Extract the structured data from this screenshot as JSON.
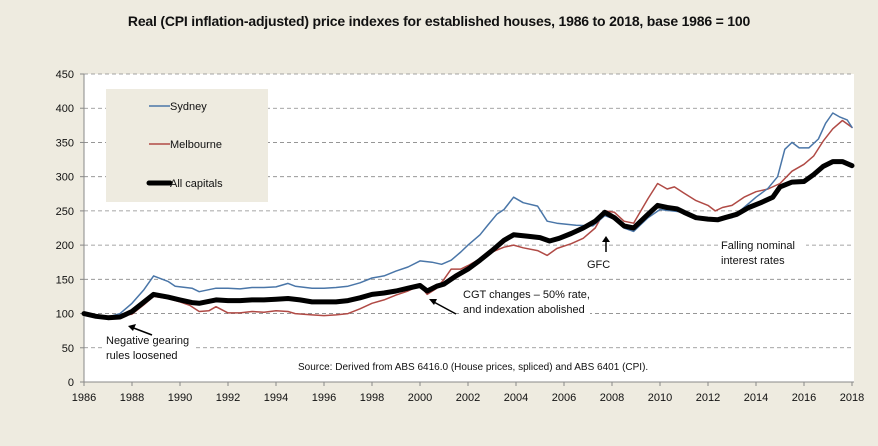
{
  "chart_data": {
    "type": "line",
    "title": "Real (CPI inflation-adjusted) price indexes for established houses, 1986 to 2018, base 1986 = 100",
    "xlabel": "",
    "ylabel": "",
    "xlim": [
      1986,
      2018
    ],
    "ylim": [
      0,
      450
    ],
    "x_ticks": [
      "1986",
      "1988",
      "1990",
      "1992",
      "1994",
      "1996",
      "1998",
      "2000",
      "2002",
      "2004",
      "2006",
      "2008",
      "2010",
      "2012",
      "2014",
      "2016",
      "2018"
    ],
    "y_ticks": [
      "0",
      "50",
      "100",
      "150",
      "200",
      "250",
      "300",
      "350",
      "400",
      "450"
    ],
    "grid": "horizontal dashed",
    "legend_position": "top-left",
    "series": [
      {
        "name": "Sydney",
        "color": "#4a76a8",
        "points": [
          [
            1986,
            100
          ],
          [
            1986.5,
            97
          ],
          [
            1987,
            95
          ],
          [
            1987.5,
            100
          ],
          [
            1988,
            115
          ],
          [
            1988.5,
            135
          ],
          [
            1988.9,
            155
          ],
          [
            1989.5,
            147
          ],
          [
            1989.8,
            140
          ],
          [
            1990.5,
            137
          ],
          [
            1990.8,
            132
          ],
          [
            1991.5,
            137
          ],
          [
            1992,
            137
          ],
          [
            1992.5,
            136
          ],
          [
            1993,
            138
          ],
          [
            1993.5,
            138
          ],
          [
            1994,
            139
          ],
          [
            1994.5,
            144
          ],
          [
            1994.8,
            140
          ],
          [
            1995.5,
            137
          ],
          [
            1996,
            137
          ],
          [
            1996.5,
            138
          ],
          [
            1997,
            140
          ],
          [
            1997.5,
            145
          ],
          [
            1998,
            152
          ],
          [
            1998.5,
            155
          ],
          [
            1999,
            162
          ],
          [
            1999.5,
            168
          ],
          [
            2000,
            177
          ],
          [
            2000.5,
            175
          ],
          [
            2000.9,
            172
          ],
          [
            2001.3,
            178
          ],
          [
            2001.7,
            190
          ],
          [
            2002,
            200
          ],
          [
            2002.5,
            215
          ],
          [
            2002.8,
            228
          ],
          [
            2003.2,
            245
          ],
          [
            2003.5,
            252
          ],
          [
            2003.9,
            270
          ],
          [
            2004.3,
            262
          ],
          [
            2004.9,
            257
          ],
          [
            2005.3,
            235
          ],
          [
            2005.7,
            232
          ],
          [
            2006.5,
            229
          ],
          [
            2007.2,
            228
          ],
          [
            2007.7,
            243
          ],
          [
            2008.1,
            238
          ],
          [
            2008.5,
            225
          ],
          [
            2008.9,
            220
          ],
          [
            2009.5,
            240
          ],
          [
            2010,
            252
          ],
          [
            2010.5,
            250
          ],
          [
            2011,
            248
          ],
          [
            2011.5,
            240
          ],
          [
            2012,
            238
          ],
          [
            2012.5,
            238
          ],
          [
            2013,
            240
          ],
          [
            2013.5,
            255
          ],
          [
            2014,
            270
          ],
          [
            2014.5,
            283
          ],
          [
            2014.9,
            300
          ],
          [
            2015.2,
            340
          ],
          [
            2015.5,
            350
          ],
          [
            2015.8,
            342
          ],
          [
            2016.2,
            342
          ],
          [
            2016.6,
            355
          ],
          [
            2016.9,
            378
          ],
          [
            2017.2,
            393
          ],
          [
            2017.5,
            387
          ],
          [
            2017.8,
            383
          ],
          [
            2018,
            372
          ]
        ]
      },
      {
        "name": "Melbourne",
        "color": "#b04a45",
        "points": [
          [
            1986,
            100
          ],
          [
            1986.5,
            97
          ],
          [
            1987,
            95
          ],
          [
            1987.5,
            97
          ],
          [
            1988,
            99
          ],
          [
            1988.5,
            113
          ],
          [
            1988.9,
            125
          ],
          [
            1989.5,
            122
          ],
          [
            1990,
            117
          ],
          [
            1990.4,
            112
          ],
          [
            1990.8,
            103
          ],
          [
            1991.2,
            104
          ],
          [
            1991.5,
            110
          ],
          [
            1992,
            101
          ],
          [
            1992.5,
            101
          ],
          [
            1993,
            103
          ],
          [
            1993.5,
            102
          ],
          [
            1994,
            104
          ],
          [
            1994.5,
            103
          ],
          [
            1994.8,
            100
          ],
          [
            1995.5,
            98
          ],
          [
            1996,
            97
          ],
          [
            1996.5,
            98
          ],
          [
            1997,
            100
          ],
          [
            1997.5,
            107
          ],
          [
            1998,
            115
          ],
          [
            1998.5,
            120
          ],
          [
            1999,
            127
          ],
          [
            1999.5,
            133
          ],
          [
            2000,
            141
          ],
          [
            2000.3,
            128
          ],
          [
            2000.7,
            137
          ],
          [
            2001,
            150
          ],
          [
            2001.3,
            165
          ],
          [
            2001.7,
            165
          ],
          [
            2002,
            170
          ],
          [
            2002.5,
            180
          ],
          [
            2003,
            190
          ],
          [
            2003.5,
            197
          ],
          [
            2003.9,
            200
          ],
          [
            2004.3,
            196
          ],
          [
            2004.9,
            192
          ],
          [
            2005.3,
            185
          ],
          [
            2005.7,
            195
          ],
          [
            2006.3,
            202
          ],
          [
            2006.8,
            210
          ],
          [
            2007.3,
            225
          ],
          [
            2007.7,
            250
          ],
          [
            2008.1,
            248
          ],
          [
            2008.5,
            235
          ],
          [
            2008.9,
            232
          ],
          [
            2009.5,
            268
          ],
          [
            2009.9,
            290
          ],
          [
            2010.3,
            282
          ],
          [
            2010.6,
            285
          ],
          [
            2011,
            276
          ],
          [
            2011.5,
            265
          ],
          [
            2012,
            258
          ],
          [
            2012.3,
            250
          ],
          [
            2012.6,
            255
          ],
          [
            2013,
            258
          ],
          [
            2013.5,
            270
          ],
          [
            2014,
            278
          ],
          [
            2014.5,
            282
          ],
          [
            2015,
            290
          ],
          [
            2015.5,
            308
          ],
          [
            2016,
            318
          ],
          [
            2016.4,
            330
          ],
          [
            2016.8,
            352
          ],
          [
            2017.2,
            370
          ],
          [
            2017.6,
            382
          ],
          [
            2018,
            372
          ]
        ]
      },
      {
        "name": "All capitals",
        "color": "#000000",
        "points": [
          [
            1986,
            100
          ],
          [
            1986.5,
            96
          ],
          [
            1987,
            94
          ],
          [
            1987.5,
            95
          ],
          [
            1988,
            103
          ],
          [
            1988.5,
            117
          ],
          [
            1988.9,
            128
          ],
          [
            1989.5,
            124
          ],
          [
            1990,
            120
          ],
          [
            1990.5,
            116
          ],
          [
            1990.8,
            115
          ],
          [
            1991.5,
            120
          ],
          [
            1992,
            119
          ],
          [
            1992.5,
            119
          ],
          [
            1993,
            120
          ],
          [
            1993.5,
            120
          ],
          [
            1994,
            121
          ],
          [
            1994.5,
            122
          ],
          [
            1995,
            120
          ],
          [
            1995.5,
            117
          ],
          [
            1996,
            117
          ],
          [
            1996.5,
            117
          ],
          [
            1997,
            119
          ],
          [
            1997.5,
            123
          ],
          [
            1998,
            128
          ],
          [
            1998.5,
            130
          ],
          [
            1999,
            133
          ],
          [
            1999.5,
            137
          ],
          [
            2000,
            141
          ],
          [
            2000.3,
            133
          ],
          [
            2000.7,
            140
          ],
          [
            2001,
            143
          ],
          [
            2001.5,
            155
          ],
          [
            2002,
            165
          ],
          [
            2002.5,
            178
          ],
          [
            2003,
            192
          ],
          [
            2003.5,
            207
          ],
          [
            2003.9,
            215
          ],
          [
            2004.5,
            213
          ],
          [
            2005,
            211
          ],
          [
            2005.4,
            206
          ],
          [
            2005.8,
            210
          ],
          [
            2006.3,
            217
          ],
          [
            2006.8,
            225
          ],
          [
            2007.3,
            235
          ],
          [
            2007.7,
            248
          ],
          [
            2008.1,
            240
          ],
          [
            2008.5,
            228
          ],
          [
            2008.9,
            225
          ],
          [
            2009.5,
            245
          ],
          [
            2009.9,
            258
          ],
          [
            2010.3,
            255
          ],
          [
            2010.7,
            253
          ],
          [
            2011,
            248
          ],
          [
            2011.5,
            240
          ],
          [
            2012,
            238
          ],
          [
            2012.4,
            237
          ],
          [
            2012.7,
            240
          ],
          [
            2013.2,
            245
          ],
          [
            2013.7,
            255
          ],
          [
            2014.2,
            262
          ],
          [
            2014.7,
            270
          ],
          [
            2015,
            285
          ],
          [
            2015.5,
            292
          ],
          [
            2016,
            293
          ],
          [
            2016.4,
            303
          ],
          [
            2016.8,
            315
          ],
          [
            2017.2,
            322
          ],
          [
            2017.6,
            322
          ],
          [
            2018,
            316
          ]
        ]
      }
    ],
    "annotations": [
      {
        "id": "negative-gearing",
        "lines": [
          "Negative gearing",
          "rules loosened"
        ],
        "points_to": [
          1987.8,
          85
        ]
      },
      {
        "id": "cgt-changes",
        "lines": [
          "CGT changes – 50% rate,",
          "and indexation abolished"
        ],
        "points_to": [
          2000.3,
          125
        ]
      },
      {
        "id": "gfc",
        "lines": [
          "GFC"
        ],
        "points_to": [
          2007.7,
          220
        ]
      },
      {
        "id": "falling-rates",
        "lines": [
          "Falling nominal",
          "interest rates"
        ]
      }
    ],
    "source": "Source: Derived from ABS 6416.0 (House prices, spliced) and ABS 6401 (CPI)."
  }
}
